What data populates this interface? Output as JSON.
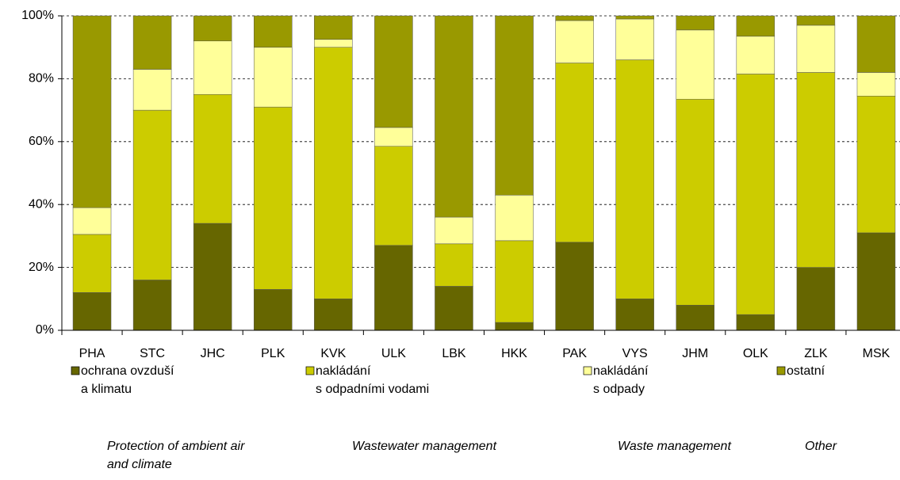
{
  "chart_data": {
    "type": "bar",
    "stacked": true,
    "categories": [
      "PHA",
      "STC",
      "JHC",
      "PLK",
      "KVK",
      "ULK",
      "LBK",
      "HKK",
      "PAK",
      "VYS",
      "JHM",
      "OLK",
      "ZLK",
      "MSK"
    ],
    "series": [
      {
        "name": "ochrana ovzduší\na klimatu",
        "color": "#666600",
        "values": [
          12,
          16,
          34,
          13,
          10,
          27,
          14,
          2.5,
          28,
          10,
          8,
          5,
          20,
          31
        ]
      },
      {
        "name": "nakládání\ns odpadními vodami",
        "color": "#cccc00",
        "values": [
          18.5,
          54,
          41,
          58,
          80,
          31.5,
          13.5,
          26,
          57,
          76,
          65.5,
          76.5,
          62,
          43.5
        ]
      },
      {
        "name": "nakládání\ns odpady",
        "color": "#ffff99",
        "values": [
          8.5,
          13,
          17,
          19,
          2.5,
          6,
          8.5,
          14.5,
          13.5,
          13,
          22,
          12,
          15,
          7.5
        ]
      },
      {
        "name": "ostatní",
        "color": "#999900",
        "values": [
          61,
          17,
          8,
          10,
          7.5,
          35.5,
          64,
          57,
          1.5,
          1,
          4.5,
          6.5,
          3,
          18
        ]
      }
    ],
    "legend_translations": [
      "Protection of ambient air\nand  climate",
      "Wastewater management",
      "Waste management",
      "Other"
    ],
    "ylim": [
      0,
      100
    ],
    "yticks": [
      {
        "value": 0,
        "label": "0%"
      },
      {
        "value": 20,
        "label": "20%"
      },
      {
        "value": 40,
        "label": "40%"
      },
      {
        "value": 60,
        "label": "60%"
      },
      {
        "value": 80,
        "label": "80%"
      },
      {
        "value": 100,
        "label": "100%"
      }
    ],
    "grid": true
  }
}
